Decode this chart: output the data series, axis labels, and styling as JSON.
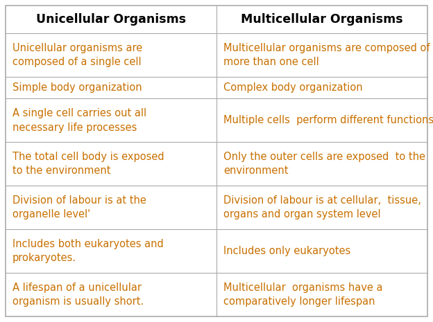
{
  "col1_header": "Unicellular Organisms",
  "col2_header": "Multicellular Organisms",
  "header_color": "#000000",
  "row_text_color": "#c87000",
  "border_color": "#aaaaaa",
  "bg_color": "#ffffff",
  "rows": [
    [
      "Unicellular organisms are\ncomposed of a single cell",
      "Multicellular organisms are composed of\nmore than one cell"
    ],
    [
      "Simple body organization",
      "Complex body organization"
    ],
    [
      "A single cell carries out all\nnecessary life processes",
      "Multiple cells  perform different functions"
    ],
    [
      "The total cell body is exposed\nto the environment",
      "Only the outer cells are exposed  to the\nenvironment"
    ],
    [
      "Division of labour is at the\norganelle level'",
      "Division of labour is at cellular,  tissue,\norgans and organ system level"
    ],
    [
      "Includes both eukaryotes and\nprokaryotes.",
      "Includes only eukaryotes"
    ],
    [
      "A lifespan of a unicellular\norganism is usually short.",
      "Multicellular  organisms have a\ncomparatively longer lifespan"
    ]
  ],
  "header_fontsize": 12.5,
  "cell_fontsize": 10.5,
  "fig_width": 6.24,
  "fig_height": 4.65,
  "dpi": 100
}
